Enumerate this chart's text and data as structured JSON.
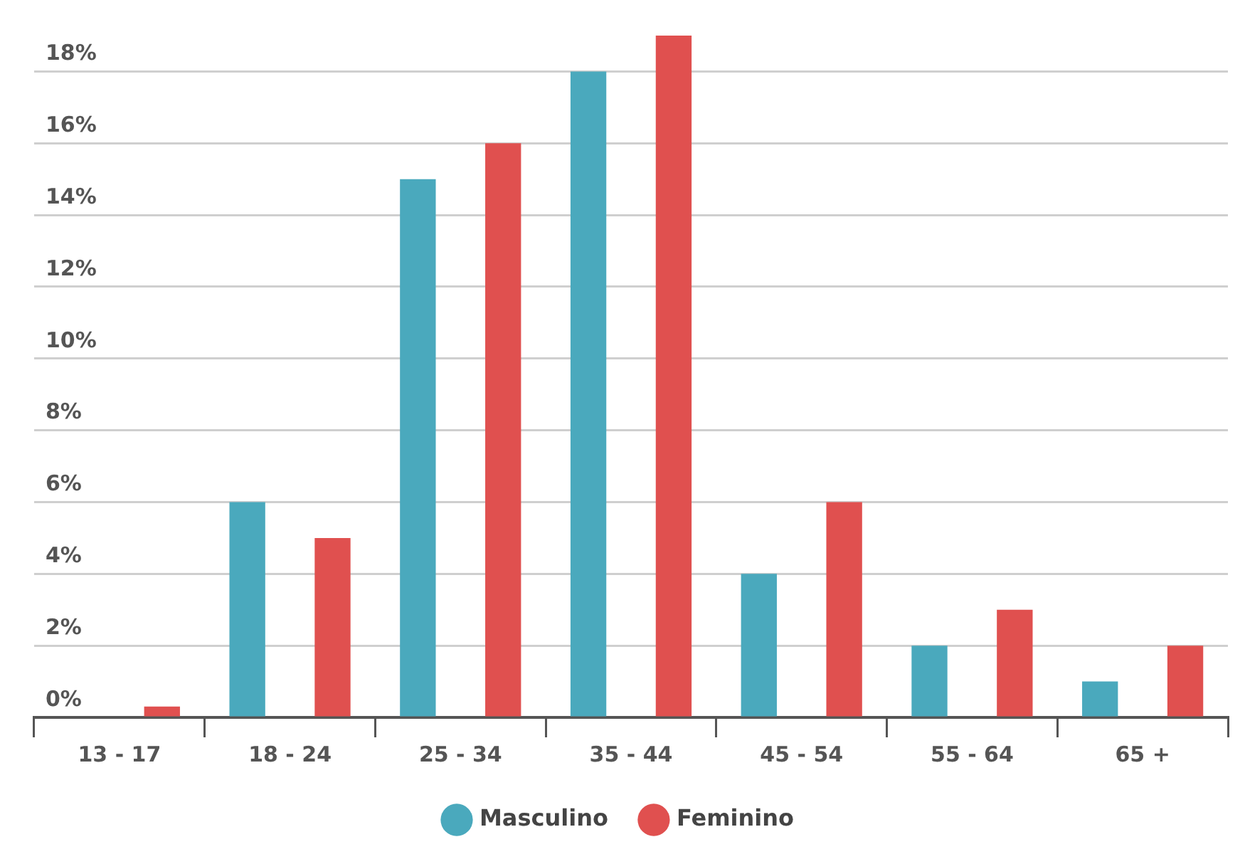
{
  "chart_data": {
    "type": "bar",
    "categories": [
      "13 - 17",
      "18 - 24",
      "25 - 34",
      "35 - 44",
      "45 - 54",
      "55 - 64",
      "65 +"
    ],
    "series": [
      {
        "name": "Masculino",
        "color": "#4aa9bd",
        "values": [
          0,
          6,
          15,
          18,
          4,
          2,
          1
        ]
      },
      {
        "name": "Feminino",
        "color": "#e0504f",
        "values": [
          0.3,
          5,
          16,
          19,
          6,
          3,
          2
        ]
      }
    ],
    "ylim": [
      0,
      19
    ],
    "yticks": [
      {
        "value": 0,
        "label": "0%"
      },
      {
        "value": 2,
        "label": "2%"
      },
      {
        "value": 4,
        "label": "4%"
      },
      {
        "value": 6,
        "label": "6%"
      },
      {
        "value": 8,
        "label": "8%"
      },
      {
        "value": 10,
        "label": "10%"
      },
      {
        "value": 12,
        "label": "12%"
      },
      {
        "value": 14,
        "label": "14%"
      },
      {
        "value": 16,
        "label": "16%"
      },
      {
        "value": 18,
        "label": "18%"
      }
    ],
    "grid": "y",
    "legend": "bottom"
  }
}
